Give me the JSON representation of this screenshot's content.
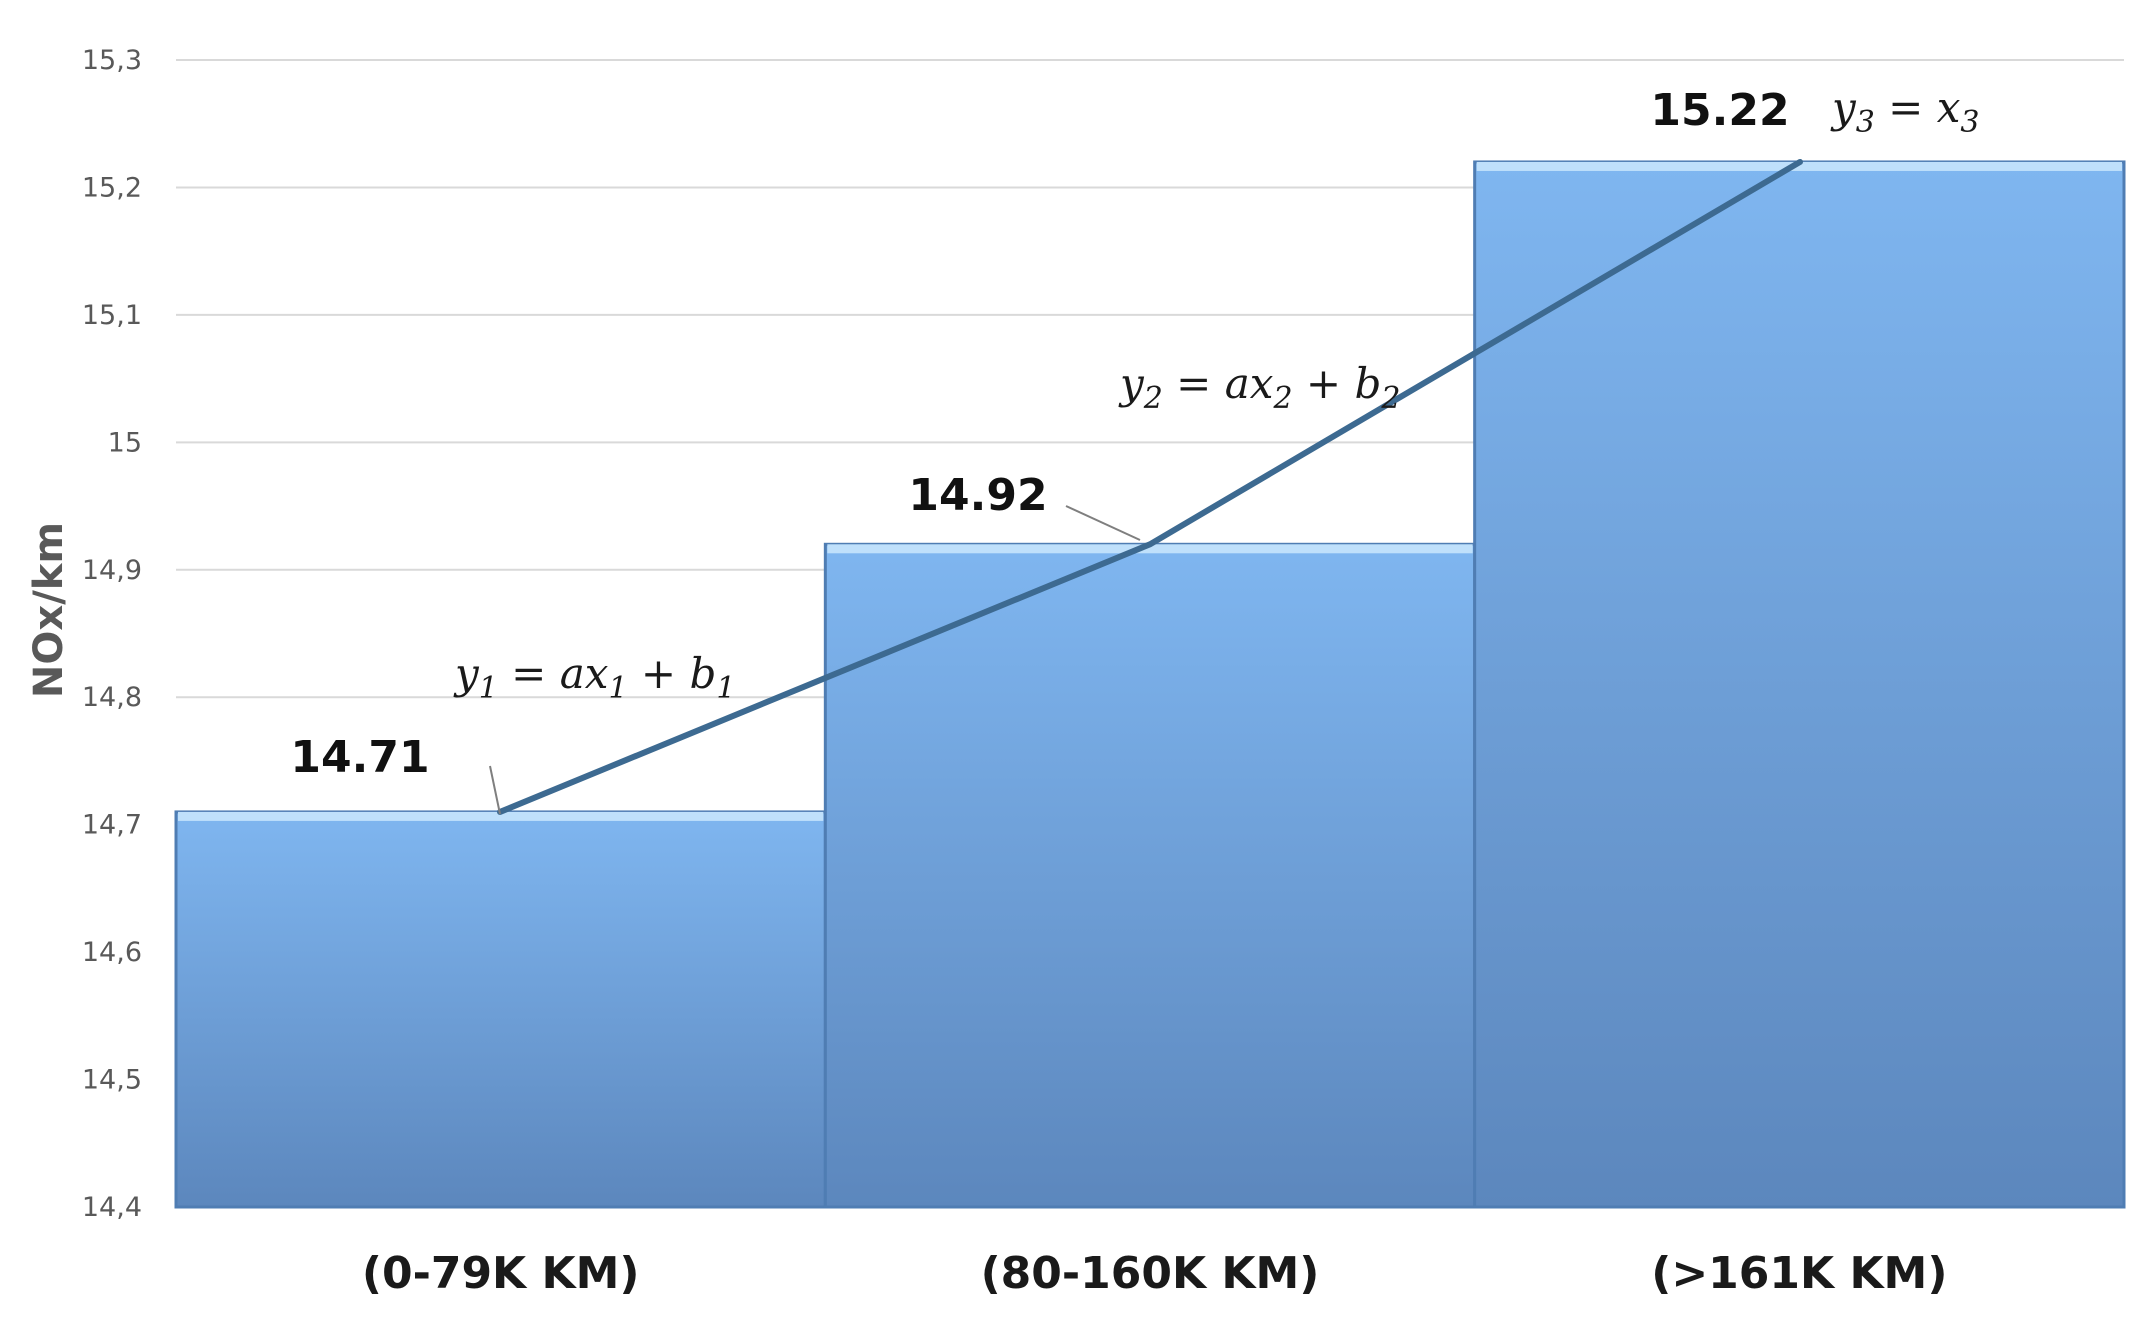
{
  "chart_data": {
    "type": "bar",
    "ylabel": "NOx/km",
    "ylim": [
      14.4,
      15.3
    ],
    "y_ticks": [
      "14,4",
      "14,5",
      "14,6",
      "14,7",
      "14,8",
      "14,9",
      "15",
      "15,1",
      "15,2",
      "15,3"
    ],
    "categories": [
      "(0-79K KM)",
      "(80-160K KM)",
      "(>161K KM)"
    ],
    "values": [
      14.71,
      14.92,
      15.22
    ],
    "data_labels": [
      "14.71",
      "14.92",
      "15.22"
    ],
    "grid": true,
    "bar_gap": false,
    "colors": {
      "bar_top": "#7fb6f0",
      "bar_bottom": "#5c87bd",
      "bar_edge": "#4f7db3",
      "bar_cap": "#bfe0fb",
      "trend_line": "#3d6a91"
    },
    "trend_line": {
      "points": [
        14.71,
        14.92,
        15.22
      ]
    },
    "annotations": [
      {
        "base": "y",
        "sub1": "1",
        "mid": " = ax",
        "sub2": "1",
        "tail": " + b",
        "sub3": "1"
      },
      {
        "base": "y",
        "sub1": "2",
        "mid": " = ax",
        "sub2": "2",
        "tail": " + b",
        "sub3": "2"
      },
      {
        "base": "y",
        "sub1": "3",
        "mid": " = x",
        "sub2": "3",
        "tail": "",
        "sub3": ""
      }
    ]
  }
}
